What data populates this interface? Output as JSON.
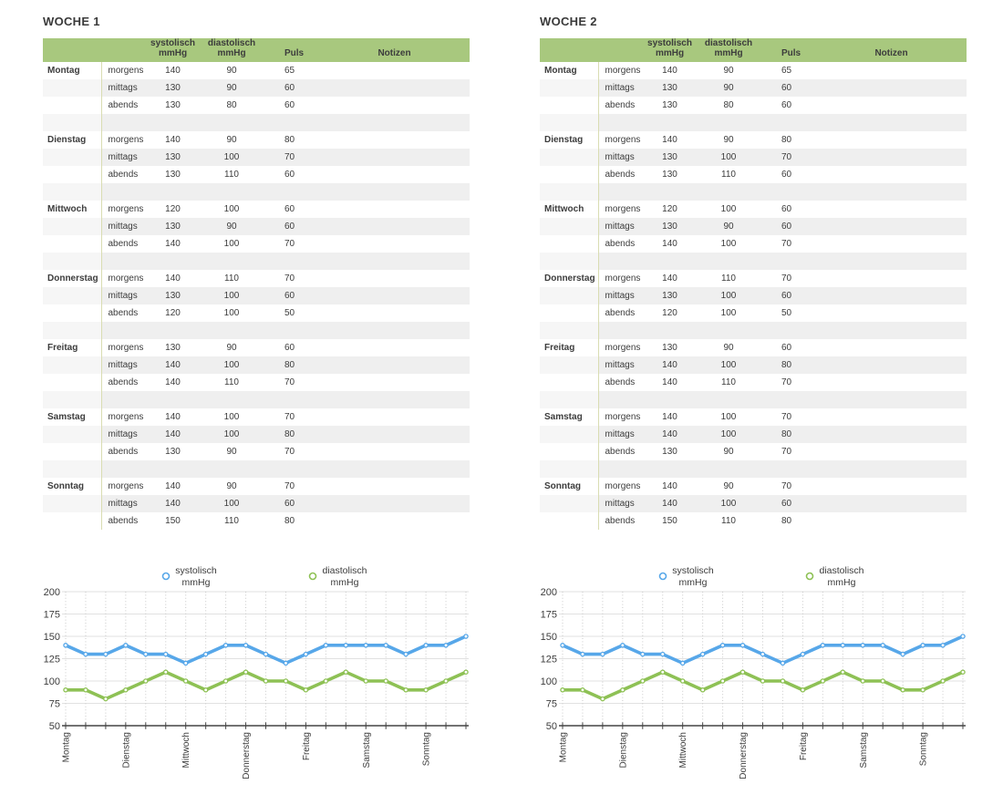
{
  "colors": {
    "header_green": "#a8c87e",
    "row_stripe": "#efefef",
    "day_divider": "#d9dcb2",
    "systolisch_blue": "#57a7e9",
    "diastolisch_green": "#8ec155",
    "axis": "#444444",
    "grid_horizontal": "#e1e1e1",
    "grid_vertical": "#c9c9c9",
    "text": "#3c3c3c"
  },
  "table_header": {
    "day": "",
    "time": "",
    "systolisch": [
      "systolisch",
      "mmHg"
    ],
    "diastolisch": [
      "diastolisch",
      "mmHg"
    ],
    "puls": "Puls",
    "notizen": "Notizen"
  },
  "weeks": [
    {
      "title": "WOCHE 1",
      "days": [
        {
          "day": "Montag",
          "entries": [
            {
              "time": "morgens",
              "sys": 140,
              "dia": 90,
              "puls": 65,
              "notiz": ""
            },
            {
              "time": "mittags",
              "sys": 130,
              "dia": 90,
              "puls": 60,
              "notiz": ""
            },
            {
              "time": "abends",
              "sys": 130,
              "dia": 80,
              "puls": 60,
              "notiz": ""
            }
          ]
        },
        {
          "day": "Dienstag",
          "entries": [
            {
              "time": "morgens",
              "sys": 140,
              "dia": 90,
              "puls": 80,
              "notiz": ""
            },
            {
              "time": "mittags",
              "sys": 130,
              "dia": 100,
              "puls": 70,
              "notiz": ""
            },
            {
              "time": "abends",
              "sys": 130,
              "dia": 110,
              "puls": 60,
              "notiz": ""
            }
          ]
        },
        {
          "day": "Mittwoch",
          "entries": [
            {
              "time": "morgens",
              "sys": 120,
              "dia": 100,
              "puls": 60,
              "notiz": ""
            },
            {
              "time": "mittags",
              "sys": 130,
              "dia": 90,
              "puls": 60,
              "notiz": ""
            },
            {
              "time": "abends",
              "sys": 140,
              "dia": 100,
              "puls": 70,
              "notiz": ""
            }
          ]
        },
        {
          "day": "Donnerstag",
          "entries": [
            {
              "time": "morgens",
              "sys": 140,
              "dia": 110,
              "puls": 70,
              "notiz": ""
            },
            {
              "time": "mittags",
              "sys": 130,
              "dia": 100,
              "puls": 60,
              "notiz": ""
            },
            {
              "time": "abends",
              "sys": 120,
              "dia": 100,
              "puls": 50,
              "notiz": ""
            }
          ]
        },
        {
          "day": "Freitag",
          "entries": [
            {
              "time": "morgens",
              "sys": 130,
              "dia": 90,
              "puls": 60,
              "notiz": ""
            },
            {
              "time": "mittags",
              "sys": 140,
              "dia": 100,
              "puls": 80,
              "notiz": ""
            },
            {
              "time": "abends",
              "sys": 140,
              "dia": 110,
              "puls": 70,
              "notiz": ""
            }
          ]
        },
        {
          "day": "Samstag",
          "entries": [
            {
              "time": "morgens",
              "sys": 140,
              "dia": 100,
              "puls": 70,
              "notiz": ""
            },
            {
              "time": "mittags",
              "sys": 140,
              "dia": 100,
              "puls": 80,
              "notiz": ""
            },
            {
              "time": "abends",
              "sys": 130,
              "dia": 90,
              "puls": 70,
              "notiz": ""
            }
          ]
        },
        {
          "day": "Sonntag",
          "entries": [
            {
              "time": "morgens",
              "sys": 140,
              "dia": 90,
              "puls": 70,
              "notiz": ""
            },
            {
              "time": "mittags",
              "sys": 140,
              "dia": 100,
              "puls": 60,
              "notiz": ""
            },
            {
              "time": "abends",
              "sys": 150,
              "dia": 110,
              "puls": 80,
              "notiz": ""
            }
          ]
        }
      ]
    },
    {
      "title": "WOCHE 2",
      "days": [
        {
          "day": "Montag",
          "entries": [
            {
              "time": "morgens",
              "sys": 140,
              "dia": 90,
              "puls": 65,
              "notiz": ""
            },
            {
              "time": "mittags",
              "sys": 130,
              "dia": 90,
              "puls": 60,
              "notiz": ""
            },
            {
              "time": "abends",
              "sys": 130,
              "dia": 80,
              "puls": 60,
              "notiz": ""
            }
          ]
        },
        {
          "day": "Dienstag",
          "entries": [
            {
              "time": "morgens",
              "sys": 140,
              "dia": 90,
              "puls": 80,
              "notiz": ""
            },
            {
              "time": "mittags",
              "sys": 130,
              "dia": 100,
              "puls": 70,
              "notiz": ""
            },
            {
              "time": "abends",
              "sys": 130,
              "dia": 110,
              "puls": 60,
              "notiz": ""
            }
          ]
        },
        {
          "day": "Mittwoch",
          "entries": [
            {
              "time": "morgens",
              "sys": 120,
              "dia": 100,
              "puls": 60,
              "notiz": ""
            },
            {
              "time": "mittags",
              "sys": 130,
              "dia": 90,
              "puls": 60,
              "notiz": ""
            },
            {
              "time": "abends",
              "sys": 140,
              "dia": 100,
              "puls": 70,
              "notiz": ""
            }
          ]
        },
        {
          "day": "Donnerstag",
          "entries": [
            {
              "time": "morgens",
              "sys": 140,
              "dia": 110,
              "puls": 70,
              "notiz": ""
            },
            {
              "time": "mittags",
              "sys": 130,
              "dia": 100,
              "puls": 60,
              "notiz": ""
            },
            {
              "time": "abends",
              "sys": 120,
              "dia": 100,
              "puls": 50,
              "notiz": ""
            }
          ]
        },
        {
          "day": "Freitag",
          "entries": [
            {
              "time": "morgens",
              "sys": 130,
              "dia": 90,
              "puls": 60,
              "notiz": ""
            },
            {
              "time": "mittags",
              "sys": 140,
              "dia": 100,
              "puls": 80,
              "notiz": ""
            },
            {
              "time": "abends",
              "sys": 140,
              "dia": 110,
              "puls": 70,
              "notiz": ""
            }
          ]
        },
        {
          "day": "Samstag",
          "entries": [
            {
              "time": "morgens",
              "sys": 140,
              "dia": 100,
              "puls": 70,
              "notiz": ""
            },
            {
              "time": "mittags",
              "sys": 140,
              "dia": 100,
              "puls": 80,
              "notiz": ""
            },
            {
              "time": "abends",
              "sys": 130,
              "dia": 90,
              "puls": 70,
              "notiz": ""
            }
          ]
        },
        {
          "day": "Sonntag",
          "entries": [
            {
              "time": "morgens",
              "sys": 140,
              "dia": 90,
              "puls": 70,
              "notiz": ""
            },
            {
              "time": "mittags",
              "sys": 140,
              "dia": 100,
              "puls": 60,
              "notiz": ""
            },
            {
              "time": "abends",
              "sys": 150,
              "dia": 110,
              "puls": 80,
              "notiz": ""
            }
          ]
        }
      ]
    }
  ],
  "chart_data": [
    {
      "type": "line",
      "title": "WOCHE 1 Blutdruckverlauf",
      "x_day_categories": [
        "Montag",
        "Dienstag",
        "Mittwoch",
        "Donnerstag",
        "Freitag",
        "Samstag",
        "Sonntag"
      ],
      "points_per_day": 3,
      "ylim": [
        50,
        200
      ],
      "y_ticks": [
        200,
        175,
        150,
        125,
        100,
        75,
        50
      ],
      "grid": true,
      "legend_position": "top",
      "series": [
        {
          "name": "systolisch mmHg",
          "legend_lines": [
            "systolisch",
            "mmHg"
          ],
          "color": "#57a7e9",
          "values": [
            140,
            130,
            130,
            140,
            130,
            130,
            120,
            130,
            140,
            140,
            130,
            120,
            130,
            140,
            140,
            140,
            140,
            130,
            140,
            140,
            150
          ]
        },
        {
          "name": "diastolisch mmHg",
          "legend_lines": [
            "diastolisch",
            "mmHg"
          ],
          "color": "#8ec155",
          "values": [
            90,
            90,
            80,
            90,
            100,
            110,
            100,
            90,
            100,
            110,
            100,
            100,
            90,
            100,
            110,
            100,
            100,
            90,
            90,
            100,
            110
          ]
        }
      ]
    },
    {
      "type": "line",
      "title": "WOCHE 2 Blutdruckverlauf",
      "x_day_categories": [
        "Montag",
        "Dienstag",
        "Mittwoch",
        "Donnerstag",
        "Freitag",
        "Samstag",
        "Sonntag"
      ],
      "points_per_day": 3,
      "ylim": [
        50,
        200
      ],
      "y_ticks": [
        200,
        175,
        150,
        125,
        100,
        75,
        50
      ],
      "grid": true,
      "legend_position": "top",
      "series": [
        {
          "name": "systolisch mmHg",
          "legend_lines": [
            "systolisch",
            "mmHg"
          ],
          "color": "#57a7e9",
          "values": [
            140,
            130,
            130,
            140,
            130,
            130,
            120,
            130,
            140,
            140,
            130,
            120,
            130,
            140,
            140,
            140,
            140,
            130,
            140,
            140,
            150
          ]
        },
        {
          "name": "diastolisch mmHg",
          "legend_lines": [
            "diastolisch",
            "mmHg"
          ],
          "color": "#8ec155",
          "values": [
            90,
            90,
            80,
            90,
            100,
            110,
            100,
            90,
            100,
            110,
            100,
            100,
            90,
            100,
            110,
            100,
            100,
            90,
            90,
            100,
            110
          ]
        }
      ]
    }
  ]
}
